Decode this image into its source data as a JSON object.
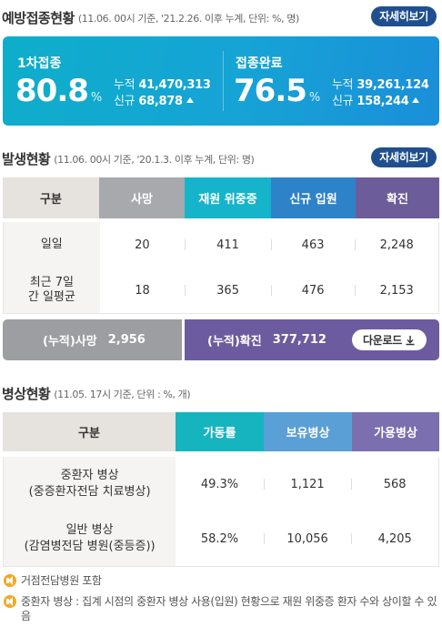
{
  "vaccination": {
    "title": "예방접종현황",
    "note": "(11.06. 00시 기준, '21.2.26. 이후 누계, 단위: %, 명)",
    "detail_label": "자세히보기",
    "first": {
      "label": "1차접종",
      "rate": "80.8",
      "unit": "%",
      "total_key": "누적",
      "total": "41,470,313",
      "new_key": "신규",
      "new": "68,878"
    },
    "complete": {
      "label": "접종완료",
      "rate": "76.5",
      "unit": "%",
      "total_key": "누적",
      "total": "39,261,124",
      "new_key": "신규",
      "new": "158,244"
    }
  },
  "occurrence": {
    "title": "발생현황",
    "note": "(11.06. 00시 기준, '20.1.3. 이후 누계, 단위: 명)",
    "detail_label": "자세히보기",
    "headers": [
      "구분",
      "사망",
      "재원 위중증",
      "신규 입원",
      "확진"
    ],
    "rows": [
      {
        "label": "일일",
        "values": [
          "20",
          "411",
          "463",
          "2,248"
        ]
      },
      {
        "label": "최근 7일간 일평균",
        "values": [
          "18",
          "365",
          "476",
          "2,153"
        ]
      }
    ],
    "cumulative": {
      "death_label": "(누적)사망",
      "death_value": "2,956",
      "confirmed_label": "(누적)확진",
      "confirmed_value": "377,712",
      "download_label": "다운로드"
    }
  },
  "beds": {
    "title": "병상현황",
    "note": "(11.05. 17시 기준, 단위 : %, 개)",
    "headers": [
      "구분",
      "가동률",
      "보유병상",
      "가용병상"
    ],
    "rows": [
      {
        "label_line1": "중환자 병상",
        "label_line2": "(중증환자전담 치료병상)",
        "values": [
          "49.3%",
          "1,121",
          "568"
        ]
      },
      {
        "label_line1": "일반 병상",
        "label_line2": "(감염병전담 병원(중등증))",
        "values": [
          "58.2%",
          "10,056",
          "4,205"
        ]
      }
    ]
  },
  "notes": [
    "거점전담병원 포함",
    "중환자 병상 : 집계 시점의 중환자 병상 사용(입원) 현황으로 재원 위중증 환자 수와 상이할 수 있음"
  ],
  "colors": {
    "accent_navy": "#1f4f8f",
    "vac_gradient_start": "#0eaeca",
    "vac_gradient_end": "#1a8fd8",
    "death": "#a7a9ac",
    "severe": "#15b4ca",
    "admission": "#2e82c8",
    "confirmed": "#6c5c99",
    "note_icon": "#f5a623"
  },
  "icons": [
    "triangle-up-icon",
    "download-icon",
    "speaker-icon"
  ]
}
